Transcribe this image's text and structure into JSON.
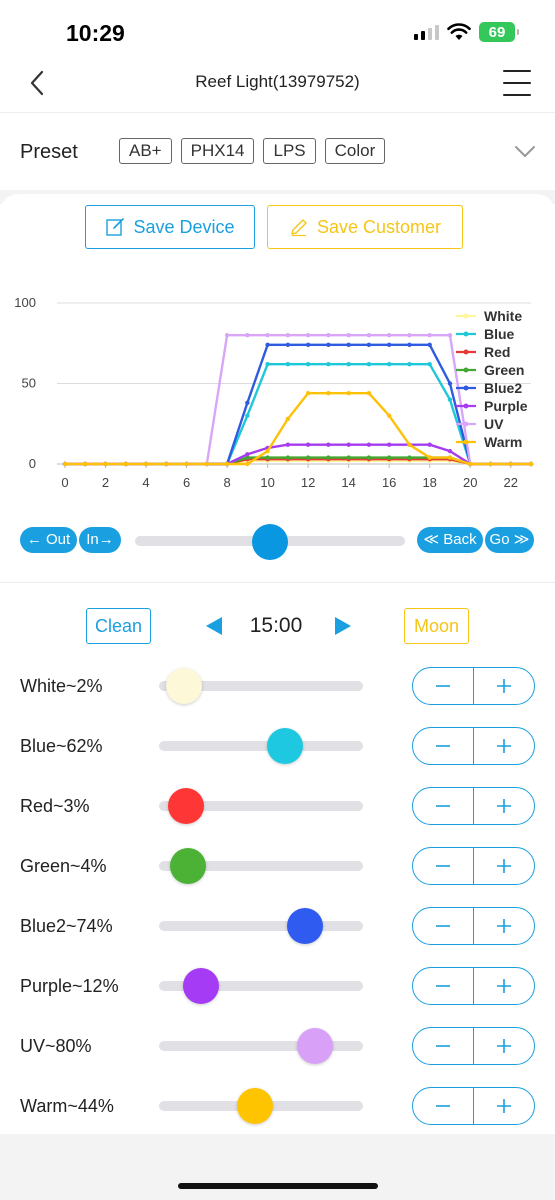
{
  "status": {
    "time": "10:29",
    "battery": "69"
  },
  "nav": {
    "title": "Reef Light(13979752)"
  },
  "preset": {
    "label": "Preset",
    "options": [
      "AB+",
      "PHX14",
      "LPS",
      "Color"
    ]
  },
  "actions": {
    "save_device": "Save Device",
    "save_customer": "Save Customer"
  },
  "chart_data": {
    "type": "line",
    "x_ticks": [
      "0",
      "2",
      "4",
      "6",
      "8",
      "10",
      "12",
      "14",
      "16",
      "18",
      "20",
      "22"
    ],
    "y_ticks": [
      "0",
      "50",
      "100"
    ],
    "xlim": [
      0,
      23
    ],
    "ylim": [
      0,
      100
    ],
    "grid": true,
    "legend": "top-right",
    "x": [
      0,
      1,
      2,
      3,
      4,
      5,
      6,
      7,
      8,
      9,
      10,
      11,
      12,
      13,
      14,
      15,
      16,
      17,
      18,
      19,
      20,
      21,
      22,
      23
    ],
    "series": [
      {
        "name": "White",
        "color": "#fff59d",
        "values": [
          0,
          0,
          0,
          0,
          0,
          0,
          0,
          0,
          0,
          2,
          2,
          2,
          2,
          2,
          2,
          2,
          2,
          2,
          2,
          2,
          0,
          0,
          0,
          0
        ]
      },
      {
        "name": "Blue",
        "color": "#1ec8d8",
        "values": [
          0,
          0,
          0,
          0,
          0,
          0,
          0,
          0,
          0,
          30,
          62,
          62,
          62,
          62,
          62,
          62,
          62,
          62,
          62,
          40,
          0,
          0,
          0,
          0
        ]
      },
      {
        "name": "Red",
        "color": "#e53935",
        "values": [
          0,
          0,
          0,
          0,
          0,
          0,
          0,
          0,
          0,
          3,
          3,
          3,
          3,
          3,
          3,
          3,
          3,
          3,
          3,
          3,
          0,
          0,
          0,
          0
        ]
      },
      {
        "name": "Green",
        "color": "#43a832",
        "values": [
          0,
          0,
          0,
          0,
          0,
          0,
          0,
          0,
          0,
          4,
          4,
          4,
          4,
          4,
          4,
          4,
          4,
          4,
          4,
          4,
          0,
          0,
          0,
          0
        ]
      },
      {
        "name": "Blue2",
        "color": "#2f5be0",
        "values": [
          0,
          0,
          0,
          0,
          0,
          0,
          0,
          0,
          0,
          38,
          74,
          74,
          74,
          74,
          74,
          74,
          74,
          74,
          74,
          50,
          0,
          0,
          0,
          0
        ]
      },
      {
        "name": "Purple",
        "color": "#a63bf0",
        "values": [
          0,
          0,
          0,
          0,
          0,
          0,
          0,
          0,
          0,
          6,
          10,
          12,
          12,
          12,
          12,
          12,
          12,
          12,
          12,
          8,
          0,
          0,
          0,
          0
        ]
      },
      {
        "name": "UV",
        "color": "#d9a6f7",
        "values": [
          0,
          0,
          0,
          0,
          0,
          0,
          0,
          0,
          80,
          80,
          80,
          80,
          80,
          80,
          80,
          80,
          80,
          80,
          80,
          80,
          0,
          0,
          0,
          0
        ]
      },
      {
        "name": "Warm",
        "color": "#ffc107",
        "values": [
          0,
          0,
          0,
          0,
          0,
          0,
          0,
          0,
          0,
          0,
          8,
          28,
          44,
          44,
          44,
          44,
          30,
          12,
          4,
          4,
          0,
          0,
          0,
          0
        ]
      }
    ]
  },
  "timeline": {
    "out": "← Out",
    "in": "In→",
    "back": "≪ Back",
    "go": "Go ≫",
    "position": 0.5
  },
  "time_controls": {
    "clean": "Clean",
    "moon": "Moon",
    "time": "15:00"
  },
  "channels": [
    {
      "label": "White~2%",
      "value": 2,
      "color": "#fdf8d8"
    },
    {
      "label": "Blue~62%",
      "value": 62,
      "color": "#1ec8e0"
    },
    {
      "label": "Red~3%",
      "value": 3,
      "color": "#ff3636"
    },
    {
      "label": "Green~4%",
      "value": 4,
      "color": "#4cb236"
    },
    {
      "label": "Blue2~74%",
      "value": 74,
      "color": "#2f5bf0"
    },
    {
      "label": "Purple~12%",
      "value": 12,
      "color": "#a63bf5"
    },
    {
      "label": "UV~80%",
      "value": 80,
      "color": "#d9a0f7"
    },
    {
      "label": "Warm~44%",
      "value": 44,
      "color": "#ffc400"
    }
  ]
}
